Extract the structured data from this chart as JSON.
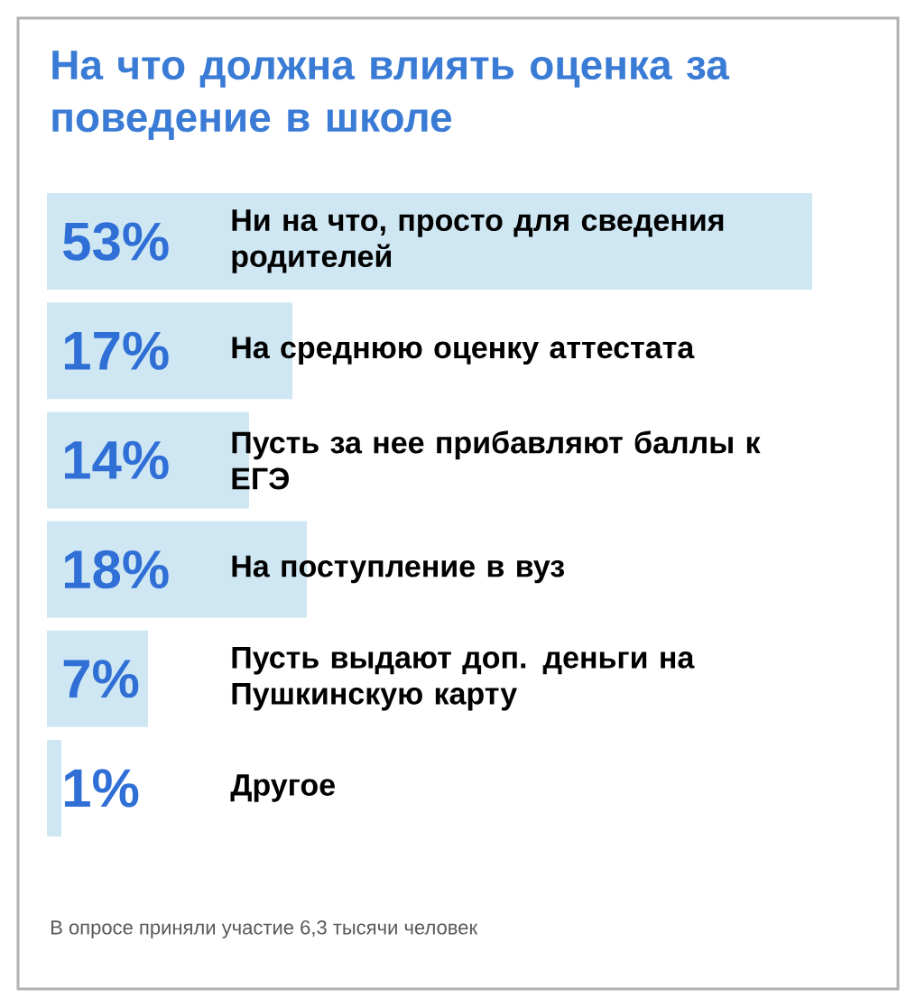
{
  "chart_data": {
    "type": "bar",
    "orientation": "horizontal",
    "title": "На что должна влиять оценка за поведение в школе",
    "categories": [
      "Ни на что, просто для сведения родителей",
      "На среднюю оценку аттестата",
      "Пусть за нее прибавляют баллы к ЕГЭ",
      "На поступление в вуз",
      "Пусть выдают доп. деньги на Пушкинскую карту",
      "Другое"
    ],
    "values": [
      53,
      17,
      14,
      18,
      7,
      1
    ],
    "value_labels": [
      "53%",
      "17%",
      "14%",
      "18%",
      "7%",
      "1%"
    ],
    "color": "#cfe7f3",
    "xlim": [
      0,
      58.75
    ],
    "annotations": [
      "В опросе приняли участие 6,3 тысячи человек"
    ]
  }
}
